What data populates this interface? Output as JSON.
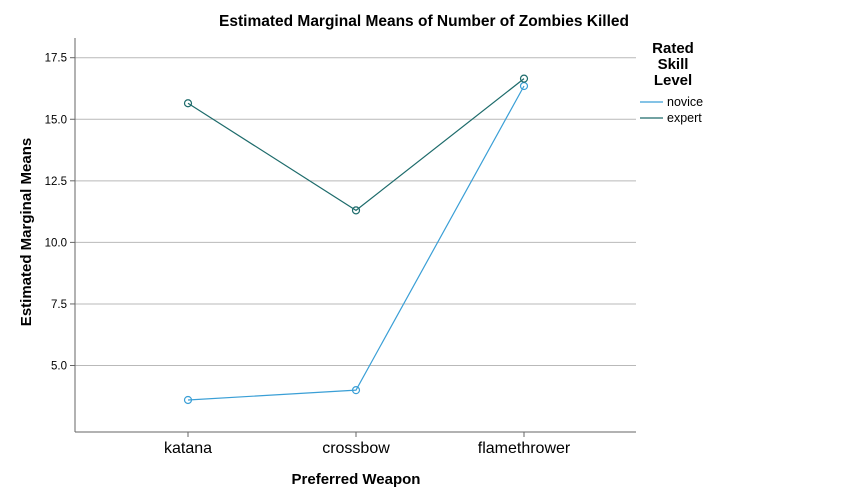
{
  "chart_data": {
    "type": "line",
    "title": "Estimated Marginal Means of Number of Zombies Killed",
    "xlabel": "Preferred Weapon",
    "ylabel": "Estimated Marginal Means",
    "categories": [
      "katana",
      "crossbow",
      "flamethrower"
    ],
    "series": [
      {
        "name": "novice",
        "values": [
          3.6,
          4.0,
          16.35
        ],
        "color": "#3a9fd6"
      },
      {
        "name": "expert",
        "values": [
          15.65,
          11.3,
          16.65
        ],
        "color": "#1d6b6b"
      }
    ],
    "ylim": [
      2.3,
      18.3
    ],
    "yticks": [
      "5.0",
      "7.5",
      "10.0",
      "12.5",
      "15.0",
      "17.5"
    ],
    "grid": true,
    "legend": {
      "title_lines": [
        "Rated",
        "Skill",
        "Level"
      ],
      "placement": "right"
    },
    "marker": "circle"
  }
}
